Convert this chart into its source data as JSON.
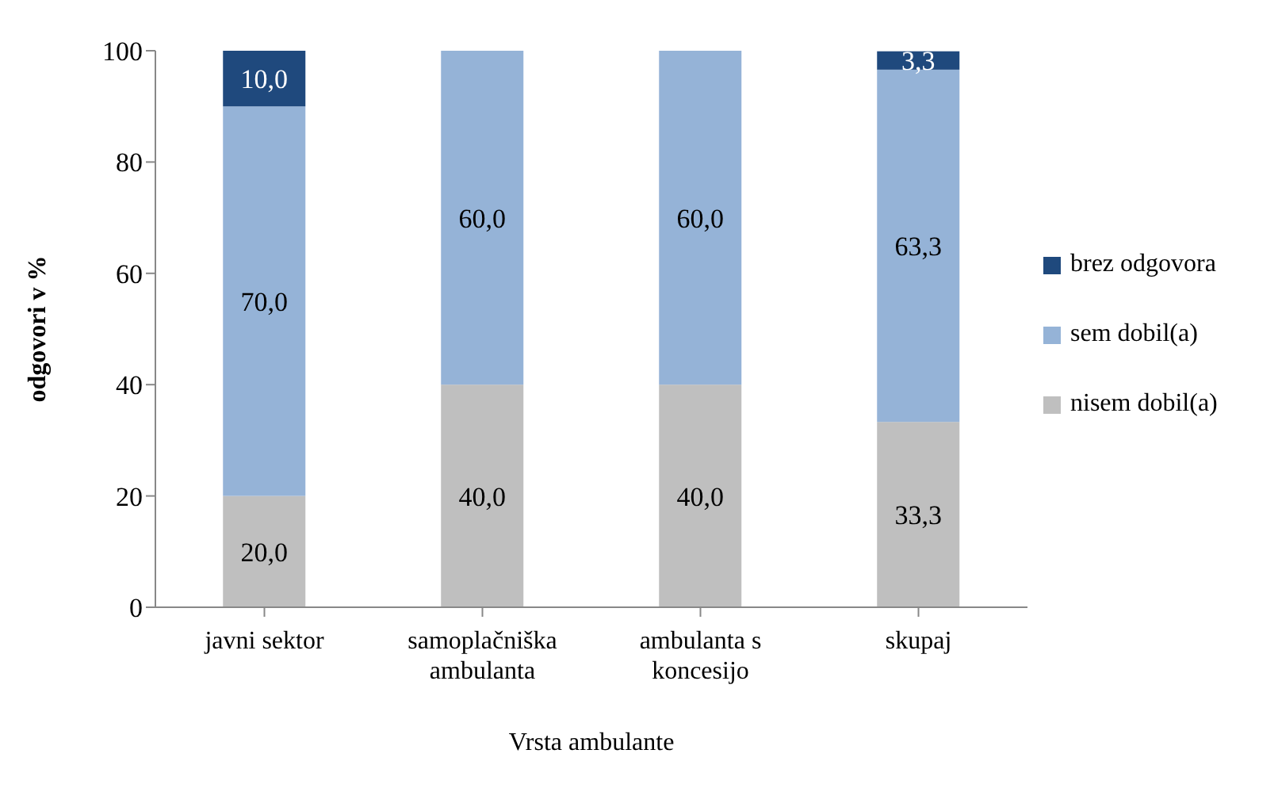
{
  "chart_data": {
    "type": "bar",
    "stacked": true,
    "xlabel": "Vrsta ambulante",
    "ylabel": "odgovori v %",
    "categories": [
      "javni sektor",
      "samoplačniška ambulanta",
      "ambulanta s koncesijo",
      "skupaj"
    ],
    "series": [
      {
        "name": "nisem dobil(a)",
        "color": "#bfbfbf",
        "values": [
          20.0,
          40.0,
          40.0,
          33.3
        ],
        "value_labels": [
          "20,0",
          "40,0",
          "40,0",
          "33,3"
        ]
      },
      {
        "name": "sem dobil(a)",
        "color": "#95b3d7",
        "values": [
          70.0,
          60.0,
          60.0,
          63.3
        ],
        "value_labels": [
          "70,0",
          "60,0",
          "60,0",
          "63,3"
        ]
      },
      {
        "name": "brez odgovora",
        "color": "#1f497d",
        "values": [
          10.0,
          0,
          0,
          3.3
        ],
        "value_labels": [
          "10,0",
          null,
          null,
          "3,3"
        ]
      }
    ],
    "ylim": [
      0,
      100
    ],
    "yticks": [
      0,
      20,
      40,
      60,
      80,
      100
    ],
    "legend": "right"
  }
}
